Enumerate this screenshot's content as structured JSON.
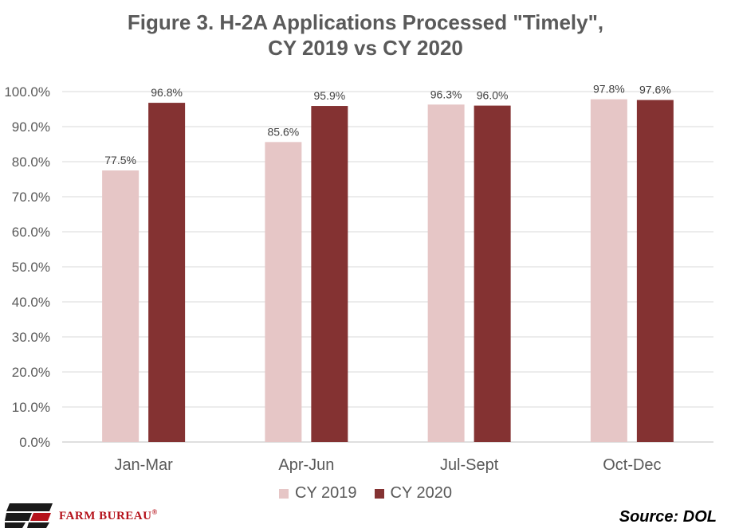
{
  "chart_data": {
    "type": "bar",
    "title_line1": "Figure 3. H-2A Applications Processed \"Timely\",",
    "title_line2": "CY 2019 vs CY 2020",
    "categories": [
      "Jan-Mar",
      "Apr-Jun",
      "Jul-Sept",
      "Oct-Dec"
    ],
    "series": [
      {
        "name": "CY 2019",
        "color": "#e6c6c6",
        "values": [
          77.5,
          85.6,
          96.3,
          97.8
        ],
        "labels": [
          "77.5%",
          "85.6%",
          "96.3%",
          "97.8%"
        ]
      },
      {
        "name": "CY 2020",
        "color": "#843232",
        "values": [
          96.8,
          95.9,
          96.0,
          97.6
        ],
        "labels": [
          "96.8%",
          "95.9%",
          "96.0%",
          "97.6%"
        ]
      }
    ],
    "ylim": [
      0,
      100
    ],
    "yticks": [
      "0.0%",
      "10.0%",
      "20.0%",
      "30.0%",
      "40.0%",
      "50.0%",
      "60.0%",
      "70.0%",
      "80.0%",
      "90.0%",
      "100.0%"
    ],
    "grid": true,
    "legend_position": "bottom"
  },
  "source": "Source: DOL",
  "logo": {
    "text": "FARM BUREAU",
    "mark": "®"
  }
}
